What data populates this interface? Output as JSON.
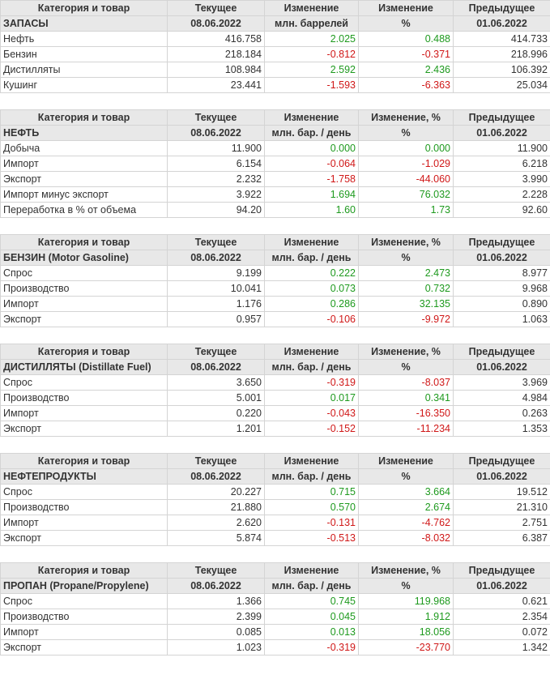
{
  "colors": {
    "positive": "#1e9a1e",
    "negative": "#d01818",
    "header_bg": "#e8e8e8"
  },
  "tables": [
    {
      "h1": [
        "Категория и товар",
        "Текущее",
        "Изменение",
        "Изменение",
        "Предыдущее"
      ],
      "h2": [
        "ЗАПАСЫ",
        "08.06.2022",
        "млн. баррелей",
        "%",
        "01.06.2022"
      ],
      "rows": [
        [
          "Нефть",
          "416.758",
          "2.025",
          "0.488",
          "414.733"
        ],
        [
          "Бензин",
          "218.184",
          "-0.812",
          "-0.371",
          "218.996"
        ],
        [
          "Дистилляты",
          "108.984",
          "2.592",
          "2.436",
          "106.392"
        ],
        [
          "Кушинг",
          "23.441",
          "-1.593",
          "-6.363",
          "25.034"
        ]
      ]
    },
    {
      "h1": [
        "Категория и товар",
        "Текущее",
        "Изменение",
        "Изменение, %",
        "Предыдущее"
      ],
      "h2": [
        "НЕФТЬ",
        "08.06.2022",
        "млн. бар. / день",
        "%",
        "01.06.2022"
      ],
      "rows": [
        [
          "Добыча",
          "11.900",
          "0.000",
          "0.000",
          "11.900"
        ],
        [
          "Импорт",
          "6.154",
          "-0.064",
          "-1.029",
          "6.218"
        ],
        [
          "Экспорт",
          "2.232",
          "-1.758",
          "-44.060",
          "3.990"
        ],
        [
          "Импорт минус экспорт",
          "3.922",
          "1.694",
          "76.032",
          "2.228"
        ],
        [
          "Переработка в % от объема",
          "94.20",
          "1.60",
          "1.73",
          "92.60"
        ]
      ]
    },
    {
      "h1": [
        "Категория и товар",
        "Текущее",
        "Изменение",
        "Изменение, %",
        "Предыдущее"
      ],
      "h2": [
        "БЕНЗИН (Motor Gasoline)",
        "08.06.2022",
        "млн. бар. / день",
        "%",
        "01.06.2022"
      ],
      "rows": [
        [
          "Спрос",
          "9.199",
          "0.222",
          "2.473",
          "8.977"
        ],
        [
          "Производство",
          "10.041",
          "0.073",
          "0.732",
          "9.968"
        ],
        [
          "Импорт",
          "1.176",
          "0.286",
          "32.135",
          "0.890"
        ],
        [
          "Экспорт",
          "0.957",
          "-0.106",
          "-9.972",
          "1.063"
        ]
      ]
    },
    {
      "h1": [
        "Категория и товар",
        "Текущее",
        "Изменение",
        "Изменение, %",
        "Предыдущее"
      ],
      "h2": [
        "ДИСТИЛЛЯТЫ (Distillate Fuel)",
        "08.06.2022",
        "млн. бар. / день",
        "%",
        "01.06.2022"
      ],
      "rows": [
        [
          "Спрос",
          "3.650",
          "-0.319",
          "-8.037",
          "3.969"
        ],
        [
          "Производство",
          "5.001",
          "0.017",
          "0.341",
          "4.984"
        ],
        [
          "Импорт",
          "0.220",
          "-0.043",
          "-16.350",
          "0.263"
        ],
        [
          "Экспорт",
          "1.201",
          "-0.152",
          "-11.234",
          "1.353"
        ]
      ]
    },
    {
      "h1": [
        "Категория и товар",
        "Текущее",
        "Изменение",
        "Изменение",
        "Предыдущее"
      ],
      "h2": [
        "НЕФТЕПРОДУКТЫ",
        "08.06.2022",
        "млн. бар. / день",
        "%",
        "01.06.2022"
      ],
      "rows": [
        [
          "Спрос",
          "20.227",
          "0.715",
          "3.664",
          "19.512"
        ],
        [
          "Производство",
          "21.880",
          "0.570",
          "2.674",
          "21.310"
        ],
        [
          "Импорт",
          "2.620",
          "-0.131",
          "-4.762",
          "2.751"
        ],
        [
          "Экспорт",
          "5.874",
          "-0.513",
          "-8.032",
          "6.387"
        ]
      ]
    },
    {
      "h1": [
        "Категория и товар",
        "Текущее",
        "Изменение",
        "Изменение, %",
        "Предыдущее"
      ],
      "h2": [
        "ПРОПАН (Propane/Propylene)",
        "08.06.2022",
        "млн. бар. / день",
        "%",
        "01.06.2022"
      ],
      "rows": [
        [
          "Спрос",
          "1.366",
          "0.745",
          "119.968",
          "0.621"
        ],
        [
          "Производство",
          "2.399",
          "0.045",
          "1.912",
          "2.354"
        ],
        [
          "Импорт",
          "0.085",
          "0.013",
          "18.056",
          "0.072"
        ],
        [
          "Экспорт",
          "1.023",
          "-0.319",
          "-23.770",
          "1.342"
        ]
      ]
    }
  ]
}
